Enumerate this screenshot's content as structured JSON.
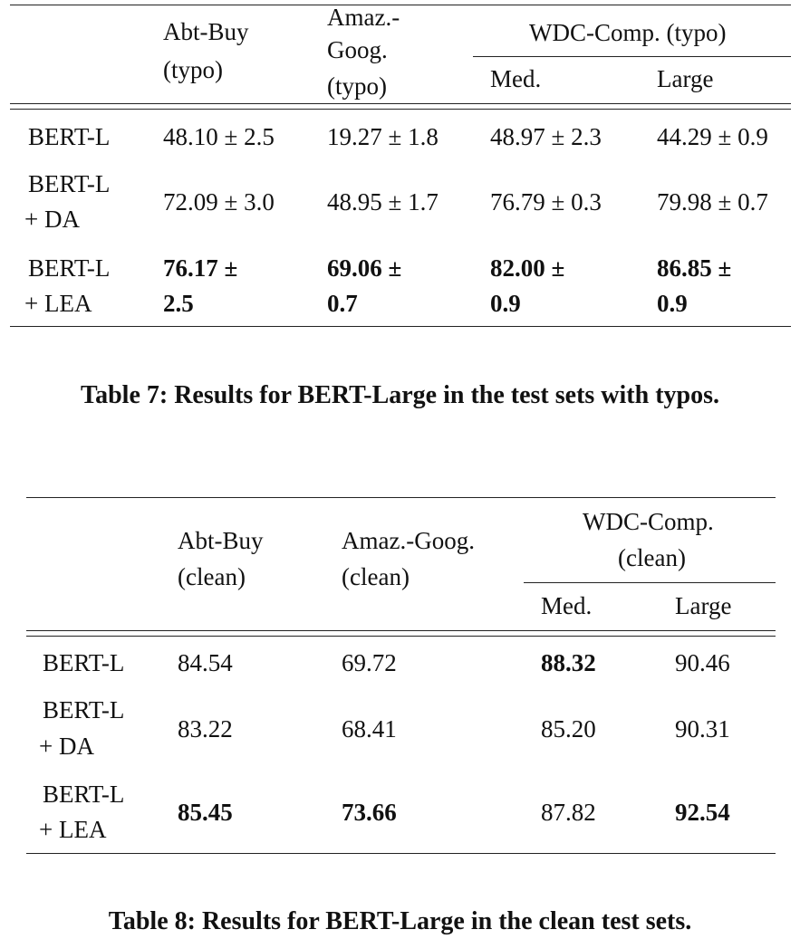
{
  "table7": {
    "header": {
      "col1_line1": "Abt-Buy",
      "col1_line2": "(typo)",
      "col2_line1": "Amaz.-",
      "col2_line2": "Goog.",
      "col2_line3": "(typo)",
      "group": "WDC-Comp. (typo)",
      "sub_med": "Med.",
      "sub_large": "Large"
    },
    "rows": [
      {
        "label1": "BERT-L",
        "label2": "",
        "c1": "48.10 ± 2.5",
        "c2": "19.27 ± 1.8",
        "c3": "48.97 ± 2.3",
        "c4": "44.29 ± 0.9"
      },
      {
        "label1": "BERT-L",
        "label2": "+ DA",
        "c1": "72.09 ± 3.0",
        "c2": "48.95 ± 1.7",
        "c3": "76.79 ± 0.3",
        "c4": "79.98 ± 0.7"
      },
      {
        "label1": "BERT-L",
        "label2": "+ LEA",
        "c1a": "76.17 ±",
        "c1b": "2.5",
        "c2a": "69.06 ±",
        "c2b": "0.7",
        "c3a": "82.00 ±",
        "c3b": "0.9",
        "c4a": "86.85 ±",
        "c4b": "0.9"
      }
    ],
    "caption": "Table 7: Results for BERT-Large in the test sets with typos."
  },
  "table8": {
    "header": {
      "col1_line1": "Abt-Buy",
      "col1_line2": "(clean)",
      "col2_line1": "Amaz.-Goog.",
      "col2_line2": "(clean)",
      "group_line1": "WDC-Comp.",
      "group_line2": "(clean)",
      "sub_med": "Med.",
      "sub_large": "Large"
    },
    "rows": [
      {
        "label1": "BERT-L",
        "label2": "",
        "c1": "84.54",
        "c2": "69.72",
        "c3": "88.32",
        "c4": "90.46"
      },
      {
        "label1": "BERT-L",
        "label2": "+ DA",
        "c1": "83.22",
        "c2": "68.41",
        "c3": "85.20",
        "c4": "90.31"
      },
      {
        "label1": "BERT-L",
        "label2": "+ LEA",
        "c1": "85.45",
        "c2": "73.66",
        "c3": "87.82",
        "c4": "92.54"
      }
    ],
    "caption": "Table 8: Results for BERT-Large in the clean test sets."
  }
}
